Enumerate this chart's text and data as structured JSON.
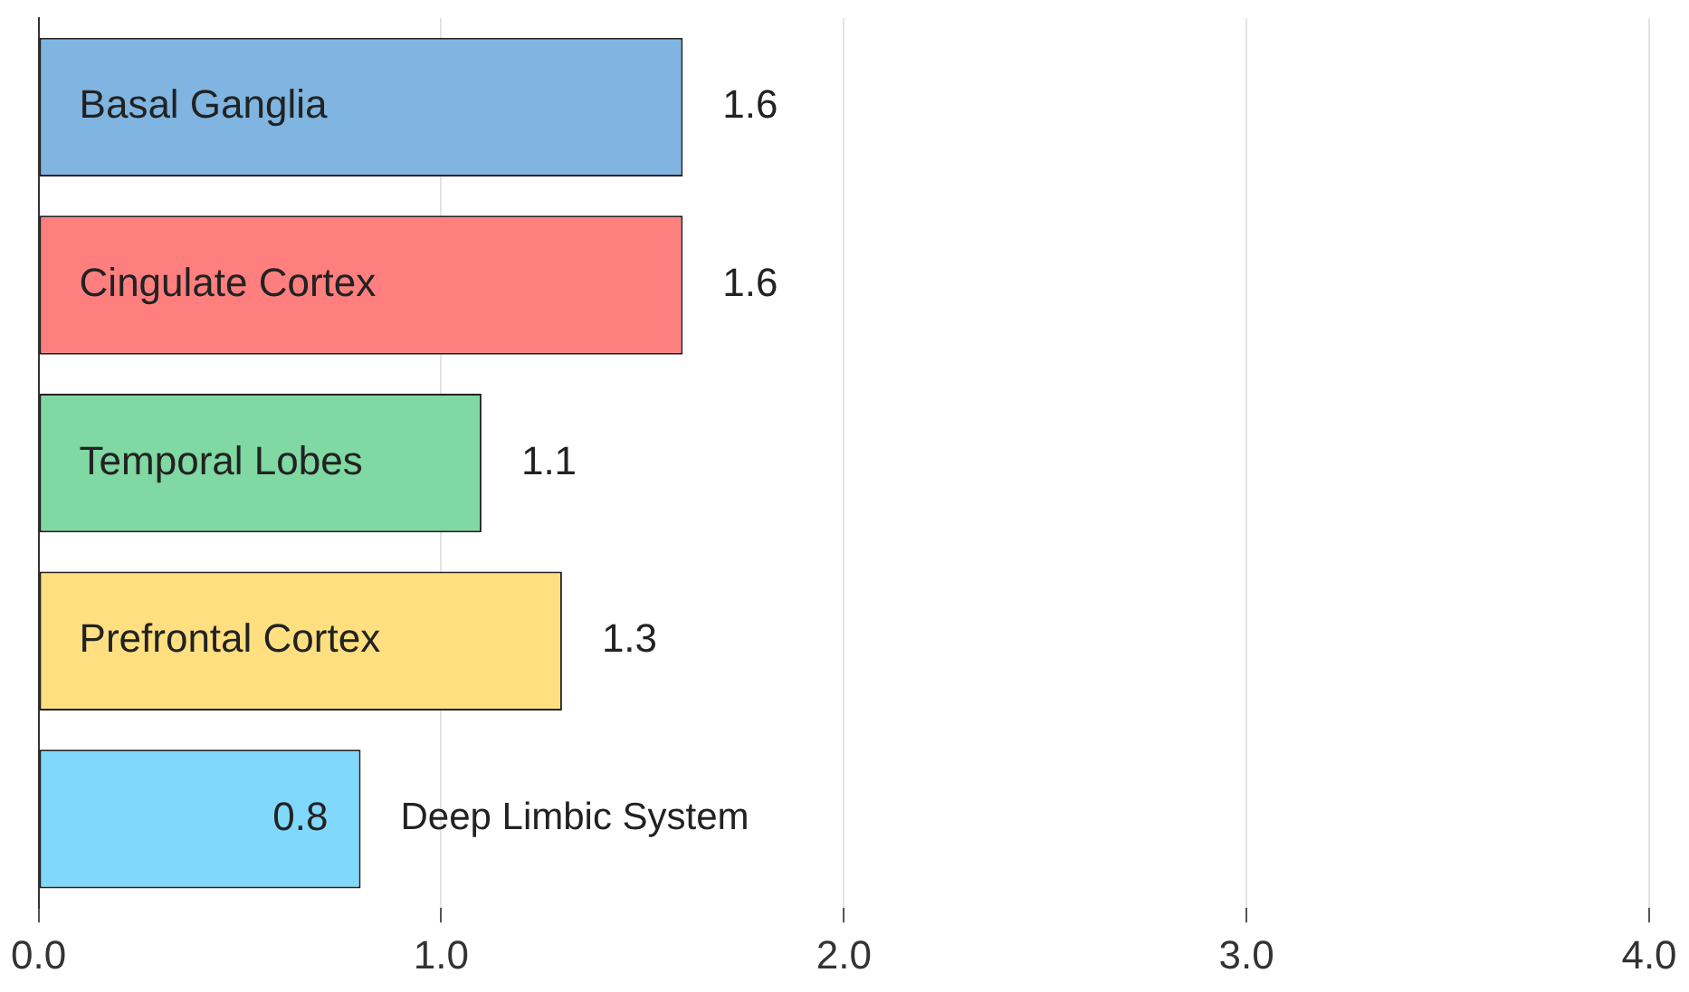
{
  "chart_data": {
    "type": "bar",
    "orientation": "horizontal",
    "categories": [
      "Basal Ganglia",
      "Cingulate Cortex",
      "Temporal Lobes",
      "Prefrontal Cortex",
      "Deep Limbic System"
    ],
    "values": [
      1.6,
      1.6,
      1.1,
      1.3,
      0.8
    ],
    "colors": [
      "#7fb5e0",
      "#ff7f7f",
      "#80d8a3",
      "#ffdf80",
      "#80d8fd"
    ],
    "xlim": [
      0,
      4
    ],
    "xticks": [
      {
        "value": 0,
        "label": "0.0"
      },
      {
        "value": 1,
        "label": "1.0"
      },
      {
        "value": 2,
        "label": "2.0"
      },
      {
        "value": 3,
        "label": "3.0"
      },
      {
        "value": 4,
        "label": "4.0"
      }
    ],
    "grid": "x",
    "tick_labels": "x",
    "data_labels": true,
    "legend": false
  }
}
